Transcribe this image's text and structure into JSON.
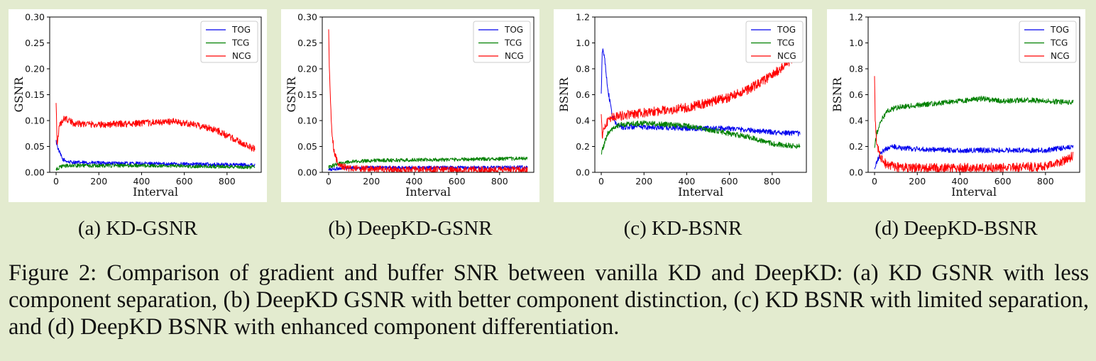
{
  "figure": {
    "caption": "Figure 2: Comparison of gradient and buffer SNR between vanilla KD and DeepKD: (a) KD GSNR with less component separation, (b) DeepKD GSNR with better component distinction, (c) KD BSNR with limited separation, and (d) DeepKD BSNR with enhanced component differentiation.",
    "subcaptions": [
      "(a) KD-GSNR",
      "(b) DeepKD-GSNR",
      "(c) KD-BSNR",
      "(d) DeepKD-BSNR"
    ]
  },
  "colors": {
    "TOG": "#0000ee",
    "TCG": "#008000",
    "NCG": "#ff0000",
    "background": "#e3ebcf"
  },
  "chart_data": [
    {
      "type": "line",
      "xlabel": "Interval",
      "ylabel": "GSNR",
      "xlim": [
        -30,
        960
      ],
      "ylim": [
        0,
        0.3
      ],
      "xticks": [
        0,
        200,
        400,
        600,
        800
      ],
      "yticks": [
        0.0,
        0.05,
        0.1,
        0.15,
        0.2,
        0.25,
        0.3
      ],
      "ytick_labels": [
        "0.00",
        "0.05",
        "0.10",
        "0.15",
        "0.20",
        "0.25",
        "0.30"
      ],
      "legend": "top-right",
      "series": [
        {
          "name": "TOG",
          "x": [
            0,
            10,
            30,
            60,
            100,
            200,
            400,
            600,
            800,
            930
          ],
          "values": [
            0.06,
            0.045,
            0.025,
            0.02,
            0.019,
            0.018,
            0.017,
            0.016,
            0.015,
            0.014
          ]
        },
        {
          "name": "TCG",
          "x": [
            0,
            10,
            30,
            60,
            100,
            200,
            400,
            600,
            800,
            930
          ],
          "values": [
            0.005,
            0.008,
            0.012,
            0.013,
            0.013,
            0.013,
            0.013,
            0.012,
            0.011,
            0.01
          ]
        },
        {
          "name": "NCG",
          "x": [
            0,
            5,
            15,
            40,
            80,
            200,
            400,
            550,
            650,
            750,
            850,
            930
          ],
          "values": [
            0.14,
            0.05,
            0.09,
            0.105,
            0.095,
            0.092,
            0.095,
            0.098,
            0.092,
            0.082,
            0.06,
            0.045
          ]
        }
      ]
    },
    {
      "type": "line",
      "xlabel": "Interval",
      "ylabel": "GSNR",
      "xlim": [
        -30,
        960
      ],
      "ylim": [
        0,
        0.3
      ],
      "xticks": [
        0,
        200,
        400,
        600,
        800
      ],
      "yticks": [
        0.0,
        0.05,
        0.1,
        0.15,
        0.2,
        0.25,
        0.3
      ],
      "ytick_labels": [
        "0.00",
        "0.05",
        "0.10",
        "0.15",
        "0.20",
        "0.25",
        "0.30"
      ],
      "legend": "top-right",
      "series": [
        {
          "name": "TOG",
          "x": [
            0,
            20,
            50,
            100,
            200,
            400,
            600,
            800,
            930
          ],
          "values": [
            0.005,
            0.006,
            0.008,
            0.009,
            0.009,
            0.009,
            0.009,
            0.009,
            0.01
          ]
        },
        {
          "name": "TCG",
          "x": [
            0,
            20,
            50,
            100,
            200,
            400,
            600,
            800,
            930
          ],
          "values": [
            0.01,
            0.013,
            0.017,
            0.02,
            0.023,
            0.024,
            0.025,
            0.026,
            0.027
          ]
        },
        {
          "name": "NCG",
          "x": [
            0,
            3,
            8,
            15,
            25,
            40,
            60,
            100,
            200,
            400,
            600,
            800,
            930
          ],
          "values": [
            0.27,
            0.2,
            0.14,
            0.08,
            0.04,
            0.02,
            0.012,
            0.008,
            0.006,
            0.005,
            0.005,
            0.005,
            0.005
          ]
        }
      ]
    },
    {
      "type": "line",
      "xlabel": "Interval",
      "ylabel": "BSNR",
      "xlim": [
        -30,
        960
      ],
      "ylim": [
        0,
        1.2
      ],
      "xticks": [
        0,
        200,
        400,
        600,
        800
      ],
      "yticks": [
        0.0,
        0.2,
        0.4,
        0.6,
        0.8,
        1.0,
        1.2
      ],
      "ytick_labels": [
        "0.0",
        "0.2",
        "0.4",
        "0.6",
        "0.8",
        "1.0",
        "1.2"
      ],
      "legend": "top-right",
      "series": [
        {
          "name": "TOG",
          "x": [
            0,
            5,
            15,
            30,
            50,
            70,
            100,
            200,
            400,
            600,
            800,
            930
          ],
          "values": [
            0.6,
            0.95,
            0.9,
            0.65,
            0.45,
            0.37,
            0.35,
            0.35,
            0.34,
            0.34,
            0.31,
            0.3
          ]
        },
        {
          "name": "TCG",
          "x": [
            0,
            10,
            30,
            60,
            100,
            200,
            400,
            600,
            700,
            800,
            930
          ],
          "values": [
            0.15,
            0.2,
            0.3,
            0.35,
            0.37,
            0.38,
            0.36,
            0.3,
            0.27,
            0.22,
            0.2
          ]
        },
        {
          "name": "NCG",
          "x": [
            0,
            5,
            20,
            50,
            100,
            200,
            400,
            600,
            700,
            800,
            900,
            930
          ],
          "values": [
            0.42,
            0.28,
            0.38,
            0.42,
            0.44,
            0.46,
            0.5,
            0.58,
            0.65,
            0.75,
            0.88,
            0.9
          ]
        }
      ]
    },
    {
      "type": "line",
      "xlabel": "Interval",
      "ylabel": "BSNR",
      "xlim": [
        -30,
        960
      ],
      "ylim": [
        0,
        1.2
      ],
      "xticks": [
        0,
        200,
        400,
        600,
        800
      ],
      "yticks": [
        0.0,
        0.2,
        0.4,
        0.6,
        0.8,
        1.0,
        1.2
      ],
      "ytick_labels": [
        "0.0",
        "0.2",
        "0.4",
        "0.6",
        "0.8",
        "1.0",
        "1.2"
      ],
      "legend": "top-right",
      "series": [
        {
          "name": "TOG",
          "x": [
            0,
            15,
            40,
            80,
            120,
            200,
            400,
            600,
            800,
            930
          ],
          "values": [
            0.02,
            0.1,
            0.17,
            0.2,
            0.19,
            0.18,
            0.17,
            0.17,
            0.17,
            0.2
          ]
        },
        {
          "name": "TCG",
          "x": [
            0,
            10,
            30,
            60,
            100,
            200,
            400,
            500,
            600,
            700,
            800,
            930
          ],
          "values": [
            0.2,
            0.3,
            0.4,
            0.47,
            0.5,
            0.52,
            0.55,
            0.57,
            0.55,
            0.56,
            0.55,
            0.54
          ]
        },
        {
          "name": "NCG",
          "x": [
            0,
            3,
            8,
            20,
            40,
            70,
            100,
            200,
            400,
            600,
            800,
            870,
            930
          ],
          "values": [
            0.72,
            0.4,
            0.25,
            0.15,
            0.08,
            0.05,
            0.04,
            0.035,
            0.035,
            0.035,
            0.045,
            0.08,
            0.13
          ]
        }
      ]
    }
  ]
}
